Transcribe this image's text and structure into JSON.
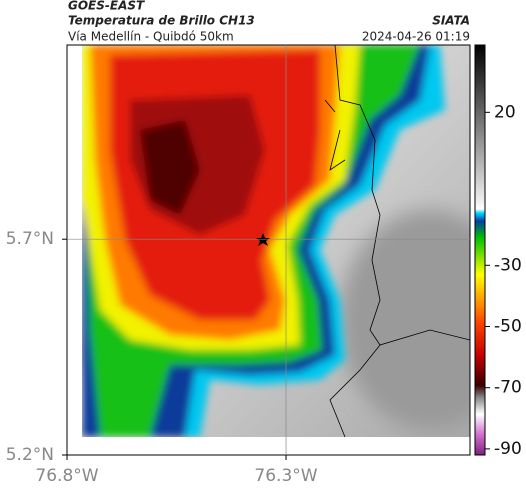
{
  "header": {
    "source": "GOES-EAST",
    "product": "Temperatura de Brillo CH13",
    "region": "Vía Medellín - Quibdó 50km",
    "agency": "SIATA",
    "timestamp": "2024-04-26 01:19"
  },
  "map": {
    "xlim": [
      -76.8,
      -75.88
    ],
    "ylim": [
      5.2,
      6.15
    ],
    "xticks": [
      {
        "value": -76.8,
        "label": "76.8°W"
      },
      {
        "value": -76.3,
        "label": "76.3°W"
      }
    ],
    "yticks": [
      {
        "value": 5.2,
        "label": "5.2°N"
      },
      {
        "value": 5.7,
        "label": "5.7°N"
      }
    ],
    "grid": true
  },
  "colorbar": {
    "clim": [
      -92,
      42
    ],
    "ticks": [
      20,
      -30,
      -50,
      -70,
      -90
    ]
  }
}
